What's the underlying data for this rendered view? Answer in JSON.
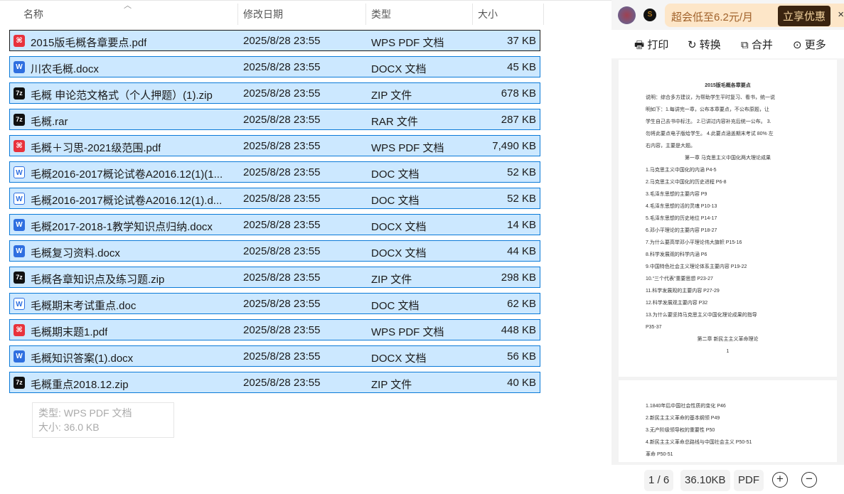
{
  "columns": {
    "name": "名称",
    "date": "修改日期",
    "type": "类型",
    "size": "大小"
  },
  "files": [
    {
      "name": "2015版毛概各章要点.pdf",
      "date": "2025/8/28 23:55",
      "type": "WPS PDF 文档",
      "size": "37 KB",
      "icon": "pdf"
    },
    {
      "name": "川农毛概.docx",
      "date": "2025/8/28 23:55",
      "type": "DOCX 文档",
      "size": "45 KB",
      "icon": "doc"
    },
    {
      "name": "毛概 申论范文格式（个人押题）(1).zip",
      "date": "2025/8/28 23:55",
      "type": "ZIP 文件",
      "size": "678 KB",
      "icon": "zip"
    },
    {
      "name": "毛概.rar",
      "date": "2025/8/28 23:55",
      "type": "RAR 文件",
      "size": "287 KB",
      "icon": "zip"
    },
    {
      "name": "毛概＋习思-2021级范围.pdf",
      "date": "2025/8/28 23:55",
      "type": "WPS PDF 文档",
      "size": "7,490 KB",
      "icon": "pdf"
    },
    {
      "name": "毛概2016-2017概论试卷A2016.12(1)(1...",
      "date": "2025/8/28 23:55",
      "type": "DOC 文档",
      "size": "52 KB",
      "icon": "docl"
    },
    {
      "name": "毛概2016-2017概论试卷A2016.12(1).d...",
      "date": "2025/8/28 23:55",
      "type": "DOC 文档",
      "size": "52 KB",
      "icon": "docl"
    },
    {
      "name": "毛概2017-2018-1教学知识点归纳.docx",
      "date": "2025/8/28 23:55",
      "type": "DOCX 文档",
      "size": "14 KB",
      "icon": "doc"
    },
    {
      "name": "毛概复习资料.docx",
      "date": "2025/8/28 23:55",
      "type": "DOCX 文档",
      "size": "44 KB",
      "icon": "doc"
    },
    {
      "name": "毛概各章知识点及练习题.zip",
      "date": "2025/8/28 23:55",
      "type": "ZIP 文件",
      "size": "298 KB",
      "icon": "zip"
    },
    {
      "name": "毛概期末考试重点.doc",
      "date": "2025/8/28 23:55",
      "type": "DOC 文档",
      "size": "62 KB",
      "icon": "docl"
    },
    {
      "name": "毛概期末题1.pdf",
      "date": "2025/8/28 23:55",
      "type": "WPS PDF 文档",
      "size": "448 KB",
      "icon": "pdf"
    },
    {
      "name": "毛概知识答案(1).docx",
      "date": "2025/8/28 23:55",
      "type": "DOCX 文档",
      "size": "56 KB",
      "icon": "doc"
    },
    {
      "name": "毛概重点2018.12.zip",
      "date": "2025/8/28 23:55",
      "type": "ZIP 文件",
      "size": "40 KB",
      "icon": "zip"
    }
  ],
  "tooltip": {
    "type": "类型: WPS PDF 文档",
    "size": "大小: 36.0 KB"
  },
  "preview": {
    "promo": "超会低至6.2元/月",
    "promo_button": "立享优惠",
    "close": "×",
    "tools": [
      "打印",
      "转换",
      "合并",
      "更多"
    ],
    "page1": [
      "2015版毛概各章要点",
      "说明：综合多方建议，为帮助学生平时复习、看书，统一说",
      "明如下：1.每讲完一章，公布本章要点，不公布原题，让",
      "学生自己去书中标注。 2.已讲过内容补充后统一公布。 3.",
      "勿将此要点电子版给学生。 4.此要点涵盖期末考试 80% 左",
      "右内容，主要是大题。",
      "第一章 马克思主义中国化两大理论成果",
      "1.马克思主义中国化的内涵 P4-5",
      "2.马克思主义中国化的历史进程 P6-8",
      "3.毛泽东思想的主要内容 P9",
      "4.毛泽东思想的活的灵魂 P10-13",
      "5.毛泽东思想的历史地位 P14-17",
      "6.邓小平理论的主要内容 P18-27",
      "7.为什么要高举邓小平理论伟大旗帜 P15-16",
      "8.科学发展观的科学内涵 P6",
      "9.中国特色社会主义理论体系主要内容 P19-22",
      "10.“三个代表”重要思想 P23-27",
      "11.科学发展观的主要内容 P27-29",
      "12.科学发展观主要内容 P32",
      "13.为什么要坚持马克思主义中国化理论成果的指导",
      "P35-37",
      "第二章 新民主主义革命理论",
      "1"
    ],
    "page2": [
      "1.1840年后中国社会性质的变化 P46",
      "2.新民主主义革命的基本纲领 P49",
      "3.无产阶级领导权的重要性 P50",
      "4.新民主主义革命总路线与中国社会主义 P50-51",
      "革命 P50-51"
    ],
    "page_indicator": "1 / 6",
    "file_size": "36.10KB",
    "format": "PDF"
  }
}
